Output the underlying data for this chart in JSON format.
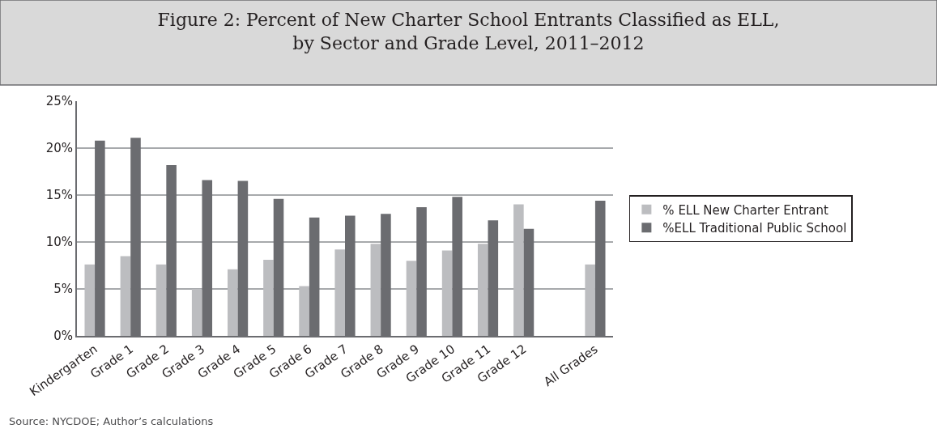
{
  "chart_data": {
    "type": "bar",
    "title": "Figure 2: Percent of New Charter School Entrants Classified as ELL,\nby Sector and Grade Level, 2011–2012",
    "categories": [
      "Kindergarten",
      "Grade 1",
      "Grade 2",
      "Grade 3",
      "Grade 4",
      "Grade 5",
      "Grade 6",
      "Grade 7",
      "Grade 8",
      "Grade 9",
      "Grade 10",
      "Grade 11",
      "Grade 12",
      null,
      "All Grades"
    ],
    "series": [
      {
        "name": "% ELL New Charter Entrant",
        "color": "#bcbdc0",
        "values": [
          7.6,
          8.5,
          7.6,
          5.0,
          7.1,
          8.1,
          5.3,
          9.2,
          9.8,
          8.0,
          9.1,
          9.8,
          14.0,
          null,
          7.6
        ]
      },
      {
        "name": "%ELL Traditional Public School",
        "color": "#6b6c70",
        "values": [
          20.8,
          21.1,
          18.2,
          16.6,
          16.5,
          14.6,
          12.6,
          12.8,
          13.0,
          13.7,
          14.8,
          12.3,
          11.4,
          null,
          14.4
        ]
      }
    ],
    "ylim": [
      0,
      25
    ],
    "yticks": [
      {
        "value": 0,
        "label": "0%"
      },
      {
        "value": 5,
        "label": "5%"
      },
      {
        "value": 10,
        "label": "10%"
      },
      {
        "value": 15,
        "label": "15%"
      },
      {
        "value": 20,
        "label": "20%"
      },
      {
        "value": 25,
        "label": "25%"
      }
    ],
    "grid": "y",
    "legend": "right",
    "annotations": [
      "Source: NYCDOE; Author’s calculations"
    ]
  }
}
